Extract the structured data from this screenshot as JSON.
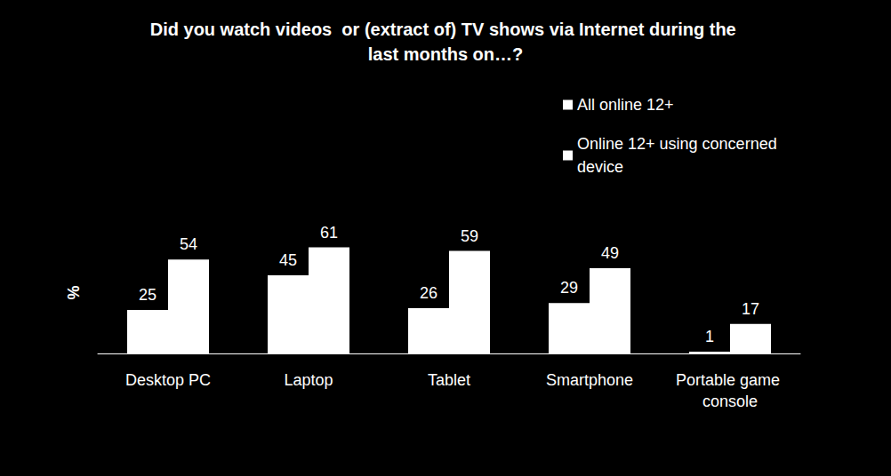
{
  "chart_data": {
    "type": "bar",
    "title": "Did you watch videos  or (extract of) TV shows via Internet during the last months on…?",
    "y_label": "%",
    "categories": [
      "Desktop PC",
      "Laptop",
      "Tablet",
      "Smartphone",
      "Portable game console"
    ],
    "series": [
      {
        "name": "All online 12+",
        "color": "#ffffff",
        "values": [
          25,
          45,
          26,
          29,
          1
        ]
      },
      {
        "name": "Online 12+ using concerned device",
        "color": "#ffffff",
        "values": [
          54,
          61,
          59,
          49,
          17
        ]
      }
    ],
    "ylim": [
      0,
      70
    ],
    "grid": false,
    "legend": "top-right",
    "data_labels": true,
    "tick_labels": "x"
  }
}
